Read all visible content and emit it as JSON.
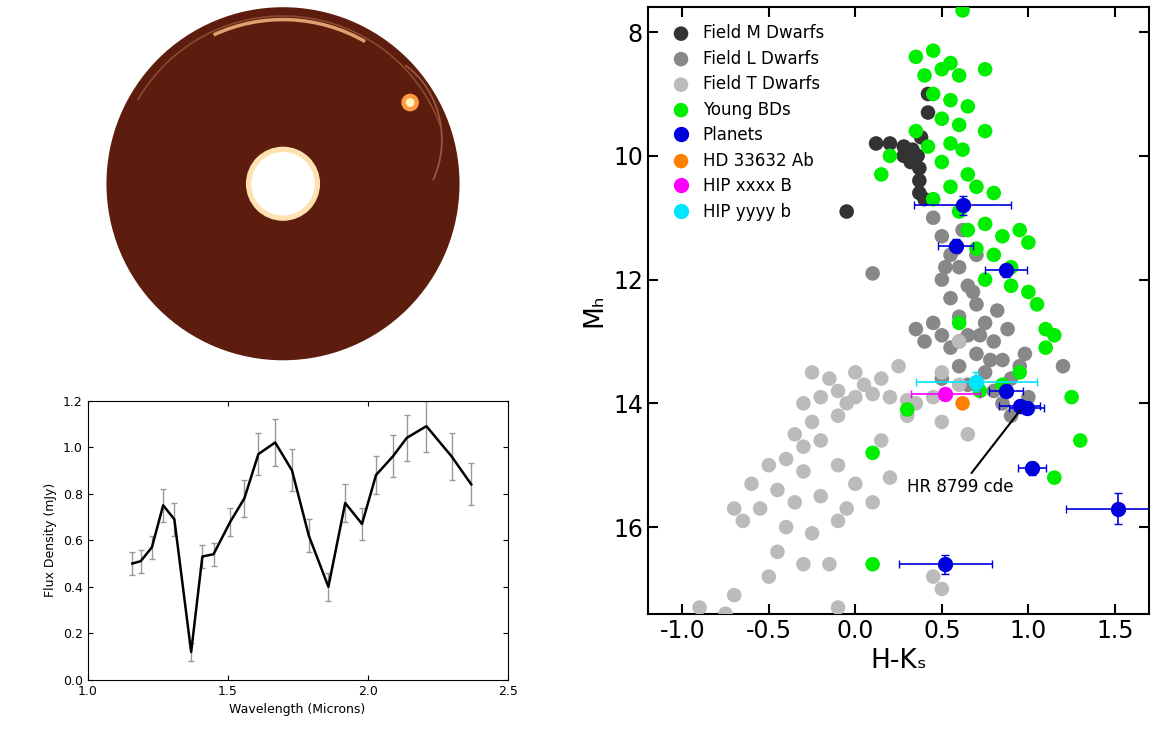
{
  "chart_data": [
    {
      "type": "line",
      "x_label": "Wavelength (Microns)",
      "y_label": "Flux Density (mJy)",
      "x": [
        1.16,
        1.19,
        1.23,
        1.27,
        1.31,
        1.37,
        1.41,
        1.45,
        1.51,
        1.56,
        1.61,
        1.67,
        1.73,
        1.79,
        1.86,
        1.92,
        1.98,
        2.03,
        2.09,
        2.14,
        2.21,
        2.3,
        2.37
      ],
      "values": [
        0.5,
        0.51,
        0.57,
        0.75,
        0.69,
        0.12,
        0.53,
        0.54,
        0.68,
        0.78,
        0.97,
        1.02,
        0.9,
        0.62,
        0.4,
        0.76,
        0.67,
        0.88,
        0.96,
        1.04,
        1.09,
        0.96,
        0.84
      ],
      "errors": [
        0.05,
        0.05,
        0.05,
        0.07,
        0.07,
        0.04,
        0.05,
        0.05,
        0.06,
        0.08,
        0.09,
        0.1,
        0.09,
        0.07,
        0.06,
        0.08,
        0.07,
        0.08,
        0.09,
        0.1,
        0.11,
        0.1,
        0.09
      ],
      "color": "#000000",
      "xlim": [
        1.0,
        2.5
      ],
      "xticks": [
        1.0,
        1.5,
        2.0,
        2.5
      ],
      "ylim": [
        0.0,
        1.2
      ],
      "yticks": [
        0.0,
        0.2,
        0.4,
        0.6,
        0.8,
        1.0,
        1.2
      ]
    },
    {
      "type": "scatter",
      "x_label": "H-Kₛ",
      "y_label": "Mₕ",
      "xlim": [
        -1.2,
        1.7
      ],
      "xticks": [
        -1.0,
        -0.5,
        0.0,
        0.5,
        1.0,
        1.5
      ],
      "ylim": [
        17.4,
        7.6
      ],
      "yticks": [
        8,
        10,
        12,
        14,
        16
      ],
      "legend": "upper left",
      "annotations": [
        {
          "text": "HR 8799 cde",
          "x": 0.97,
          "y": 14.05
        }
      ],
      "series": [
        {
          "name": "Field M Dwarfs",
          "color": "#333333",
          "x": [
            0.2,
            0.28,
            0.33,
            0.28,
            0.36,
            0.37,
            0.37,
            0.37,
            0.4,
            0.32,
            0.12,
            -0.05,
            0.38,
            0.42,
            0.42
          ],
          "values": [
            9.8,
            9.85,
            9.9,
            10.0,
            10.0,
            10.2,
            10.4,
            10.6,
            10.7,
            10.1,
            9.8,
            10.9,
            9.7,
            9.3,
            9.0
          ]
        },
        {
          "name": "Field L Dwarfs",
          "color": "#888888",
          "x": [
            0.1,
            0.45,
            0.5,
            0.55,
            0.6,
            0.5,
            0.65,
            0.55,
            0.7,
            0.6,
            0.75,
            0.45,
            0.5,
            0.65,
            0.8,
            0.55,
            0.7,
            0.85,
            0.6,
            0.75,
            0.95,
            0.9,
            0.65,
            0.8,
            1.0,
            0.85,
            0.9,
            1.2,
            0.58,
            0.62,
            0.68,
            0.72,
            0.78,
            0.82,
            0.88,
            0.6,
            0.4,
            0.5,
            0.35,
            0.98,
            0.7,
            0.52
          ],
          "values": [
            11.9,
            11.0,
            11.3,
            11.6,
            11.8,
            12.0,
            12.1,
            12.3,
            12.4,
            12.6,
            12.7,
            12.7,
            12.9,
            12.9,
            13.0,
            13.1,
            13.2,
            13.3,
            13.4,
            13.5,
            13.4,
            13.6,
            13.7,
            13.8,
            13.9,
            14.0,
            14.2,
            13.4,
            11.5,
            11.2,
            12.2,
            12.9,
            13.3,
            12.5,
            12.8,
            13.0,
            13.0,
            13.6,
            12.8,
            13.2,
            11.6,
            11.8
          ]
        },
        {
          "name": "Field T Dwarfs",
          "color": "#bbbbbb",
          "x": [
            0.6,
            0.5,
            0.45,
            0.3,
            0.2,
            0.1,
            0.0,
            -0.1,
            -0.2,
            -0.3,
            0.25,
            0.15,
            0.05,
            -0.05,
            -0.1,
            -0.25,
            -0.35,
            -0.2,
            -0.3,
            -0.4,
            -0.5,
            -0.6,
            -0.45,
            -0.3,
            -0.1,
            0.0,
            -0.2,
            -0.35,
            -0.55,
            -0.7,
            -0.65,
            -0.4,
            -0.25,
            -0.1,
            0.1,
            0.2,
            0.15,
            -0.45,
            -0.3,
            -0.5,
            -0.15,
            -0.1,
            -0.7,
            -0.9,
            -0.75,
            0.5,
            0.45,
            0.65,
            0.5,
            0.3,
            -0.15,
            -0.25,
            0.0,
            -0.05,
            0.35,
            0.6
          ],
          "values": [
            13.0,
            13.5,
            13.9,
            13.95,
            13.9,
            13.85,
            13.9,
            13.8,
            13.9,
            14.0,
            13.4,
            13.6,
            13.7,
            14.0,
            14.2,
            14.3,
            14.5,
            14.6,
            14.7,
            14.9,
            15.0,
            15.3,
            15.4,
            15.1,
            15.0,
            15.3,
            15.5,
            15.6,
            15.7,
            15.7,
            15.9,
            16.0,
            16.1,
            15.9,
            15.6,
            15.2,
            14.6,
            16.4,
            16.6,
            16.8,
            16.6,
            17.3,
            17.1,
            17.3,
            17.4,
            17.0,
            16.8,
            14.5,
            14.3,
            14.2,
            13.6,
            13.5,
            13.5,
            15.7,
            14.0,
            13.7
          ]
        },
        {
          "name": "Young BDs",
          "color": "#00ee00",
          "x": [
            0.62,
            0.35,
            0.45,
            0.5,
            0.55,
            0.6,
            0.4,
            0.75,
            0.45,
            0.55,
            0.65,
            0.5,
            0.6,
            0.75,
            0.35,
            0.42,
            0.55,
            0.62,
            0.2,
            0.15,
            0.5,
            0.65,
            0.55,
            0.7,
            0.8,
            0.45,
            0.6,
            0.75,
            0.65,
            0.85,
            0.95,
            1.0,
            0.7,
            0.8,
            0.9,
            0.75,
            0.9,
            1.0,
            1.05,
            0.6,
            1.1,
            1.15,
            1.1,
            0.95,
            0.85,
            1.25,
            1.3,
            0.3,
            1.15,
            0.1,
            0.1,
            0.72
          ],
          "values": [
            7.65,
            8.4,
            8.3,
            8.6,
            8.5,
            8.7,
            8.7,
            8.6,
            9.0,
            9.1,
            9.2,
            9.4,
            9.5,
            9.6,
            9.6,
            9.85,
            9.8,
            9.9,
            10.0,
            10.3,
            10.1,
            10.3,
            10.5,
            10.5,
            10.6,
            10.7,
            10.9,
            11.1,
            11.2,
            11.3,
            11.2,
            11.4,
            11.5,
            11.6,
            11.8,
            12.0,
            12.1,
            12.2,
            12.4,
            12.7,
            12.8,
            12.9,
            13.1,
            13.5,
            13.7,
            13.9,
            14.6,
            14.1,
            15.2,
            14.8,
            16.6,
            13.8
          ]
        },
        {
          "name": "Planets",
          "color": "#0000dd",
          "x": [
            0.62,
            0.58,
            0.87,
            0.87,
            0.95,
            0.99,
            1.02,
            1.52,
            0.52
          ],
          "values": [
            10.8,
            11.45,
            11.85,
            13.8,
            14.05,
            14.08,
            15.05,
            15.7,
            16.6
          ],
          "xerr": [
            0.28,
            0.1,
            0.12,
            0.1,
            0.12,
            0.1,
            0.08,
            0.3,
            0.27
          ],
          "yerr": [
            0.15,
            0.1,
            0.1,
            0.1,
            0.1,
            0.1,
            0.1,
            0.25,
            0.15
          ]
        },
        {
          "name": "HD 33632 Ab",
          "color": "#ff8000",
          "x": [
            0.62
          ],
          "values": [
            14.0
          ]
        },
        {
          "name": "HIP xxxx B",
          "color": "#ff00ff",
          "x": [
            0.52
          ],
          "values": [
            13.85
          ],
          "xerr": [
            0.2
          ],
          "yerr": [
            0.1
          ]
        },
        {
          "name": "HIP yyyy b",
          "color": "#00e5ff",
          "x": [
            0.7
          ],
          "values": [
            13.65
          ],
          "xerr": [
            0.35
          ],
          "yerr": [
            0.15
          ]
        }
      ]
    }
  ]
}
